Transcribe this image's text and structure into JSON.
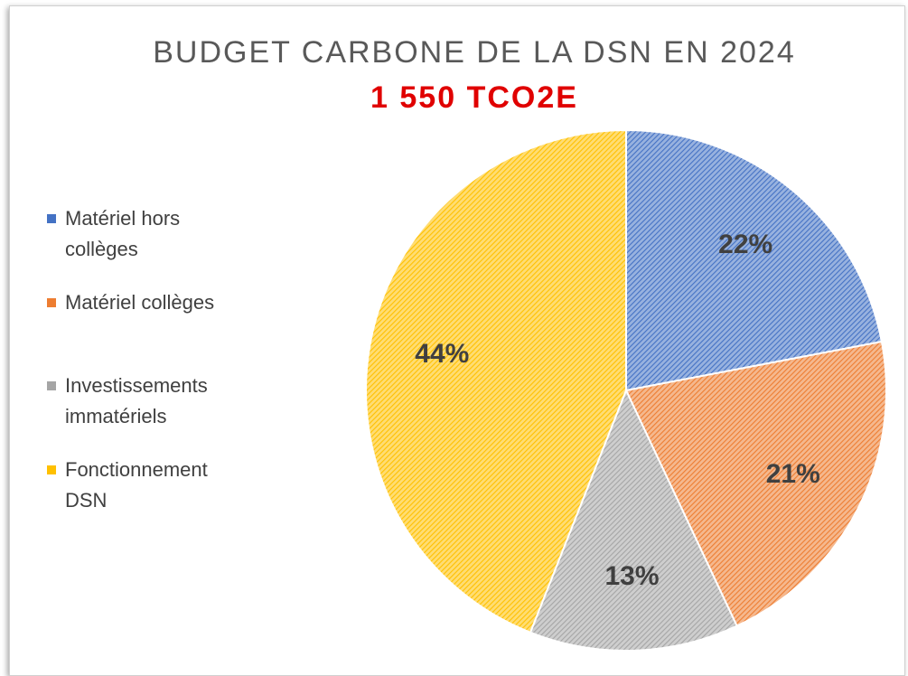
{
  "chart_data": {
    "type": "pie",
    "title": "BUDGET CARBONE DE LA DSN EN 2024",
    "subtitle": "1 550 TCO2E",
    "categories": [
      "Matériel hors collèges",
      "Matériel collèges",
      "Investissements immatériels",
      "Fonctionnement DSN"
    ],
    "values": [
      22,
      21,
      13,
      44
    ],
    "value_labels": [
      "22%",
      "21%",
      "13%",
      "44%"
    ],
    "colors": [
      "#4472c4",
      "#ed7d31",
      "#a5a5a5",
      "#ffc000"
    ],
    "legend": "left"
  }
}
